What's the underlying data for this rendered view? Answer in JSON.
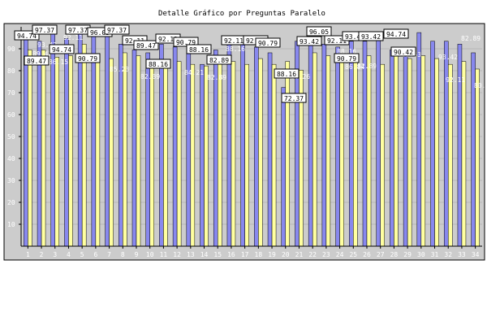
{
  "chart_data": {
    "type": "bar",
    "title": "Detalle Gráfico por Preguntas Paralelo",
    "categories": [
      "1",
      "2",
      "3",
      "4",
      "5",
      "6",
      "7",
      "8",
      "9",
      "10",
      "11",
      "12",
      "13",
      "14",
      "15",
      "16",
      "17",
      "18",
      "19",
      "20",
      "21",
      "22",
      "23",
      "24",
      "25",
      "26",
      "27",
      "28",
      "29",
      "30",
      "31",
      "32",
      "33",
      "34"
    ],
    "series": [
      {
        "name": "",
        "values": [
          94.74,
          93.42,
          97.37,
          94.74,
          97.37,
          96.05,
          97.37,
          92.11,
          89.47,
          88.16,
          92.11,
          90.79,
          88.16,
          82.89,
          89.47,
          92.11,
          92.11,
          90.79,
          88.16,
          72.37,
          93.42,
          96.05,
          92.11,
          90.79,
          93.42,
          93.42,
          94.74,
          89.47,
          90.42,
          97.37,
          93.42,
          93.42,
          92.11,
          88.16
        ]
      },
      {
        "name": "",
        "values": [
          89.47,
          89.47,
          86.15,
          86.84,
          92.11,
          86.84,
          85.53,
          88.16,
          86.84,
          82.89,
          84.21,
          84.21,
          82.89,
          82.17,
          86.84,
          84.21,
          82.89,
          85.53,
          82.89,
          84.21,
          80.26,
          88.16,
          86.84,
          86.84,
          86.84,
          86.84,
          82.89,
          88.16,
          85.53,
          86.84,
          85.53,
          82.89,
          84.21,
          80.75
        ]
      }
    ],
    "colors": {
      "series_a": "#8888ee",
      "series_b": "#ffffa0",
      "plot_bg": "#cccccc",
      "axis": "#000000"
    },
    "ylim": [
      0,
      100
    ],
    "yticks": [
      10,
      20,
      30,
      40,
      50,
      60,
      70,
      80,
      90
    ],
    "grid": true,
    "boxed_labels": [
      {
        "text": "94.74"
      },
      {
        "text": "89.47"
      },
      {
        "text": "97.37"
      },
      {
        "text": "94.74"
      },
      {
        "text": "97.37"
      },
      {
        "text": "90.79"
      },
      {
        "text": "96.05"
      },
      {
        "text": "97.37"
      },
      {
        "text": "92.11"
      },
      {
        "text": "89.47"
      },
      {
        "text": "88.16"
      },
      {
        "text": "92.11"
      },
      {
        "text": "90.79"
      },
      {
        "text": "88.16"
      },
      {
        "text": "82.89"
      },
      {
        "text": "92.11"
      },
      {
        "text": "92.11"
      },
      {
        "text": "90.79"
      },
      {
        "text": "88.16"
      },
      {
        "text": "72.37"
      },
      {
        "text": "93.42"
      },
      {
        "text": "96.05"
      },
      {
        "text": "92.11"
      },
      {
        "text": "90.79"
      },
      {
        "text": "93.42"
      },
      {
        "text": "93.42"
      },
      {
        "text": "94.74"
      },
      {
        "text": "90.42"
      }
    ],
    "faint_labels": [
      {
        "text": "89.47"
      },
      {
        "text": "93.42"
      },
      {
        "text": "86.15"
      },
      {
        "text": "92.11"
      },
      {
        "text": "85.23"
      },
      {
        "text": "82.89"
      },
      {
        "text": "84.21"
      },
      {
        "text": "82.89"
      },
      {
        "text": "88.16"
      },
      {
        "text": "80.26"
      },
      {
        "text": "88.16"
      },
      {
        "text": "86.84"
      },
      {
        "text": "82.89"
      },
      {
        "text": "85.53"
      },
      {
        "text": "93.42"
      },
      {
        "text": "92.11"
      },
      {
        "text": "82.89"
      },
      {
        "text": "80.75"
      }
    ]
  }
}
